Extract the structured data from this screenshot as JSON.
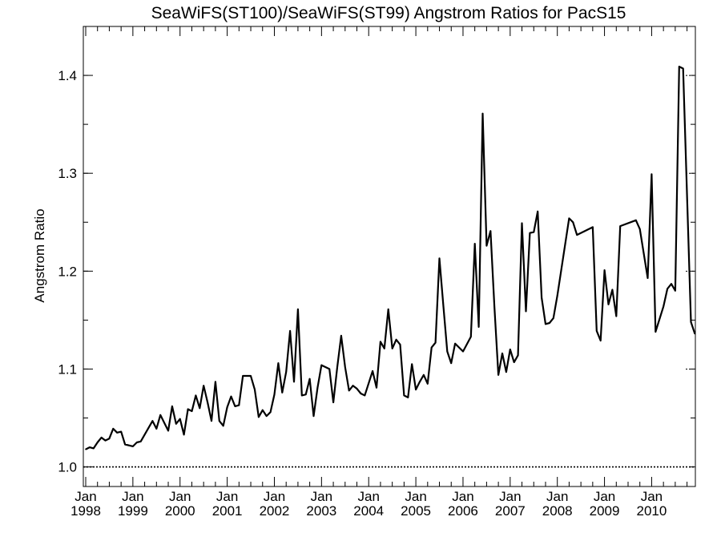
{
  "chart_data": {
    "type": "line",
    "title": "SeaWiFS(ST100)/SeaWiFS(ST99)  Angstrom Ratios for PacS15",
    "xlabel": "",
    "ylabel": "Angstrom Ratio",
    "xlim": [
      "1998-01",
      "2010-12"
    ],
    "ylim": [
      0.98,
      1.45
    ],
    "yticks": [
      "1.0",
      "1.1",
      "1.2",
      "1.3",
      "1.4"
    ],
    "xticks": [
      {
        "month": "Jan",
        "year": "1998"
      },
      {
        "month": "Jan",
        "year": "1999"
      },
      {
        "month": "Jan",
        "year": "2000"
      },
      {
        "month": "Jan",
        "year": "2001"
      },
      {
        "month": "Jan",
        "year": "2002"
      },
      {
        "month": "Jan",
        "year": "2003"
      },
      {
        "month": "Jan",
        "year": "2004"
      },
      {
        "month": "Jan",
        "year": "2005"
      },
      {
        "month": "Jan",
        "year": "2006"
      },
      {
        "month": "Jan",
        "year": "2007"
      },
      {
        "month": "Jan",
        "year": "2008"
      },
      {
        "month": "Jan",
        "year": "2009"
      },
      {
        "month": "Jan",
        "year": "2010"
      }
    ],
    "reference_line": {
      "y": 1.0,
      "style": "dotted"
    },
    "grid": "dotted tick marks on right axis",
    "series": [
      {
        "x": [
          "1998-01",
          "1998-02",
          "1998-03",
          "1998-04",
          "1998-05",
          "1998-06",
          "1998-07",
          "1998-08",
          "1998-09",
          "1998-10",
          "1998-11",
          "1999-01",
          "1999-02",
          "1999-03",
          "1999-05",
          "1999-06",
          "1999-07",
          "1999-08",
          "1999-09",
          "1999-10",
          "1999-11",
          "1999-12",
          "2000-01",
          "2000-02",
          "2000-03",
          "2000-04",
          "2000-05",
          "2000-06",
          "2000-07",
          "2000-08",
          "2000-09",
          "2000-10",
          "2000-11",
          "2000-12",
          "2001-01",
          "2001-02",
          "2001-03",
          "2001-04",
          "2001-05",
          "2001-06",
          "2001-07",
          "2001-08",
          "2001-09",
          "2001-10",
          "2001-11",
          "2001-12",
          "2002-01",
          "2002-02",
          "2002-03",
          "2002-04",
          "2002-05",
          "2002-06",
          "2002-07",
          "2002-08",
          "2002-09",
          "2002-10",
          "2002-11",
          "2002-12",
          "2003-01",
          "2003-03",
          "2003-04",
          "2003-05",
          "2003-06",
          "2003-07",
          "2003-08",
          "2003-09",
          "2003-10",
          "2003-11",
          "2003-12",
          "2004-02",
          "2004-03",
          "2004-04",
          "2004-05",
          "2004-06",
          "2004-07",
          "2004-08",
          "2004-09",
          "2004-10",
          "2004-11",
          "2004-12",
          "2005-01",
          "2005-02",
          "2005-03",
          "2005-04",
          "2005-05",
          "2005-06",
          "2005-07",
          "2005-08",
          "2005-09",
          "2005-10",
          "2005-11",
          "2005-12",
          "2006-01",
          "2006-03",
          "2006-04",
          "2006-05",
          "2006-06",
          "2006-07",
          "2006-08",
          "2006-09",
          "2006-10",
          "2006-11",
          "2006-12",
          "2007-01",
          "2007-02",
          "2007-03",
          "2007-04",
          "2007-05",
          "2007-06",
          "2007-07",
          "2007-08",
          "2007-09",
          "2007-10",
          "2007-11",
          "2007-12",
          "2008-01",
          "2008-04",
          "2008-05",
          "2008-06",
          "2008-10",
          "2008-11",
          "2008-12",
          "2009-01",
          "2009-02",
          "2009-03",
          "2009-04",
          "2009-05",
          "2009-09",
          "2009-10",
          "2009-12",
          "2010-01",
          "2010-02",
          "2010-04",
          "2010-05",
          "2010-06",
          "2010-07",
          "2010-08",
          "2010-09",
          "2010-11",
          "2010-12"
        ],
        "values": [
          1.018,
          1.02,
          1.019,
          1.025,
          1.03,
          1.027,
          1.029,
          1.039,
          1.035,
          1.036,
          1.023,
          1.021,
          1.025,
          1.026,
          1.04,
          1.047,
          1.039,
          1.053,
          1.045,
          1.037,
          1.062,
          1.044,
          1.049,
          1.033,
          1.059,
          1.057,
          1.073,
          1.06,
          1.083,
          1.066,
          1.047,
          1.087,
          1.047,
          1.042,
          1.061,
          1.072,
          1.062,
          1.063,
          1.093,
          1.093,
          1.093,
          1.079,
          1.051,
          1.058,
          1.052,
          1.056,
          1.074,
          1.106,
          1.076,
          1.097,
          1.139,
          1.087,
          1.161,
          1.073,
          1.074,
          1.09,
          1.052,
          1.081,
          1.104,
          1.1,
          1.066,
          1.102,
          1.134,
          1.102,
          1.078,
          1.083,
          1.08,
          1.075,
          1.073,
          1.098,
          1.081,
          1.128,
          1.121,
          1.161,
          1.121,
          1.13,
          1.125,
          1.073,
          1.071,
          1.105,
          1.079,
          1.087,
          1.094,
          1.085,
          1.122,
          1.127,
          1.213,
          1.165,
          1.118,
          1.106,
          1.126,
          1.122,
          1.118,
          1.133,
          1.228,
          1.143,
          1.361,
          1.226,
          1.241,
          1.163,
          1.094,
          1.116,
          1.097,
          1.12,
          1.107,
          1.114,
          1.249,
          1.159,
          1.239,
          1.24,
          1.261,
          1.173,
          1.146,
          1.147,
          1.152,
          1.175,
          1.254,
          1.25,
          1.237,
          1.245,
          1.139,
          1.129,
          1.201,
          1.166,
          1.181,
          1.154,
          1.246,
          1.252,
          1.243,
          1.193,
          1.299,
          1.138,
          1.164,
          1.182,
          1.187,
          1.18,
          1.409,
          1.407,
          1.148,
          1.136
        ]
      }
    ]
  }
}
